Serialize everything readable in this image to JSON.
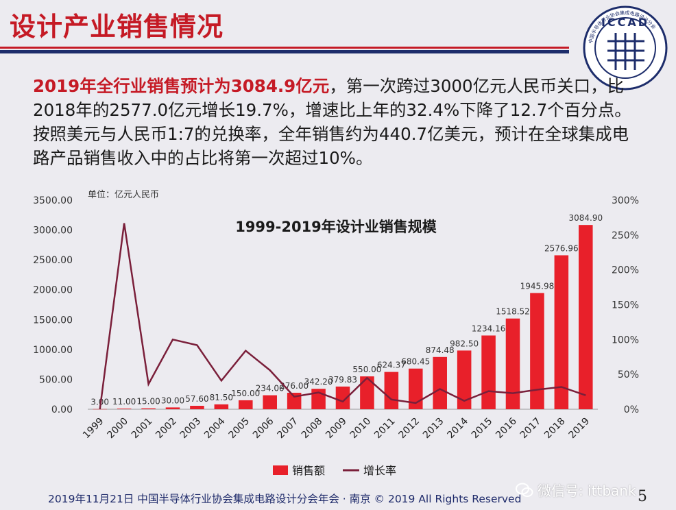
{
  "slide": {
    "title": "设计产业销售情况",
    "logo_text": "ICCAD",
    "logo_ring_text": "中国半导体行业协会集成电路设计分会",
    "body_highlight": "2019年全行业销售预计为3084.9亿元",
    "body_rest": "，第一次跨过3000亿元人民币关口，比2018年的2577.0亿元增长19.7%，增速比上年的32.4%下降了12.7个百分点。按照美元与人民币1:7的兑换率，全年销售约为440.7亿美元，预计在全球集成电路产品销售收入中的占比将第一次超过10%。",
    "footer": "2019年11月21日  中国半导体行业协会集成电路设计分会年会 · 南京 © 2019 All Rights Reserved",
    "page_number": "5",
    "watermark": "微信号: ittbank"
  },
  "colors": {
    "title_red": "#c51a25",
    "navy": "#1d2d6b",
    "bar_red": "#e8202a",
    "line_dark_red": "#7a1f3a"
  },
  "chart_data": {
    "type": "bar",
    "title": "1999-2019年设计业销售规模",
    "unit_label": "单位：亿元人民币",
    "categories": [
      "1999",
      "2000",
      "2001",
      "2002",
      "2003",
      "2004",
      "2005",
      "2006",
      "2007",
      "2008",
      "2009",
      "2010",
      "2011",
      "2012",
      "2013",
      "2014",
      "2015",
      "2016",
      "2017",
      "2018",
      "2019"
    ],
    "series": [
      {
        "name": "销售额",
        "type": "bar",
        "axis": "left",
        "values": [
          3.0,
          11.0,
          15.0,
          30.0,
          57.6,
          81.5,
          150.0,
          234.0,
          276.0,
          342.2,
          379.83,
          550.0,
          624.37,
          680.45,
          874.48,
          982.5,
          1234.16,
          1518.52,
          1945.98,
          2576.96,
          3084.9
        ],
        "labels": [
          "3.00",
          "11.00",
          "15.00",
          "30.00",
          "57.60",
          "81.50",
          "150.00",
          "234.00",
          "276.00",
          "342.20",
          "379.83",
          "550.00",
          "624.37",
          "680.45",
          "874.48",
          "982.50",
          "1234.16",
          "1518.52",
          "1945.98",
          "2576.96",
          "3084.90"
        ]
      },
      {
        "name": "增长率",
        "type": "line",
        "axis": "right",
        "values": [
          0,
          267,
          36,
          100,
          92,
          41,
          84,
          56,
          18,
          24,
          11,
          45,
          14,
          9,
          29,
          12,
          26,
          23,
          28,
          32,
          20
        ]
      }
    ],
    "ylim": [
      0,
      3500
    ],
    "yticks": [
      "0.00",
      "500.00",
      "1000.00",
      "1500.00",
      "2000.00",
      "2500.00",
      "3000.00",
      "3500.00"
    ],
    "y2lim": [
      0,
      300
    ],
    "y2ticks": [
      "0%",
      "50%",
      "100%",
      "150%",
      "200%",
      "250%",
      "300%"
    ],
    "legend": "bottom",
    "grid": false
  }
}
